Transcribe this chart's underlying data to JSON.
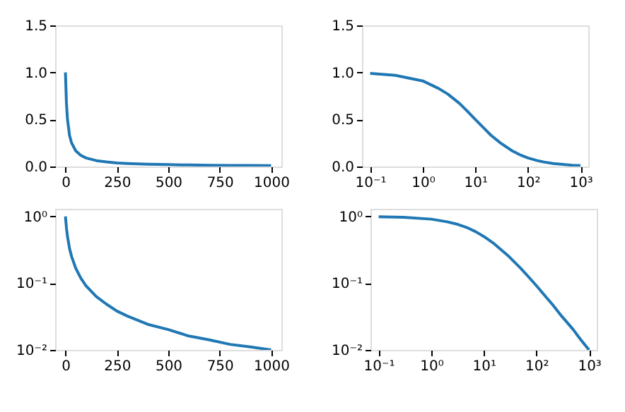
{
  "chart_data": [
    {
      "type": "line",
      "x": [
        0,
        5,
        10,
        20,
        30,
        50,
        75,
        100,
        150,
        200,
        250,
        300,
        400,
        500,
        600,
        700,
        800,
        900,
        1000
      ],
      "series": [
        {
          "color": "#1f77b4",
          "values": [
            1,
            0.67,
            0.5,
            0.33,
            0.25,
            0.167,
            0.118,
            0.091,
            0.0625,
            0.048,
            0.038,
            0.032,
            0.024,
            0.02,
            0.016,
            0.014,
            0.012,
            0.011,
            0.0099
          ]
        }
      ],
      "xlim": [
        -50,
        1050
      ],
      "xticks": [
        0,
        250,
        500,
        750,
        1000
      ],
      "ylim": [
        0,
        1.5
      ],
      "yticks": [
        {
          "value": 0,
          "label": "0.0"
        },
        {
          "value": 0.5,
          "label": "0.5"
        },
        {
          "value": 1,
          "label": "1.0"
        },
        {
          "value": 1.5,
          "label": "1.5"
        }
      ],
      "grid": false,
      "line_style": "solid"
    },
    {
      "type": "line",
      "x": [
        0.1,
        0.3,
        1,
        2,
        3,
        5,
        7,
        10,
        15,
        20,
        30,
        50,
        70,
        100,
        150,
        200,
        300,
        500,
        700,
        1000
      ],
      "series": [
        {
          "color": "#1f77b4",
          "values": [
            0.99,
            0.97,
            0.91,
            0.83,
            0.77,
            0.67,
            0.59,
            0.5,
            0.4,
            0.33,
            0.25,
            0.167,
            0.125,
            0.091,
            0.0625,
            0.048,
            0.032,
            0.02,
            0.014,
            0.0099
          ]
        }
      ],
      "log": "x",
      "xlim": [
        0.07,
        1400
      ],
      "xticks": [
        {
          "value": 0.1,
          "label": "10⁻¹"
        },
        {
          "value": 1,
          "label": "10⁰"
        },
        {
          "value": 10,
          "label": "10¹"
        },
        {
          "value": 100,
          "label": "10²"
        },
        {
          "value": 1000,
          "label": "10³"
        }
      ],
      "ylim": [
        0,
        1.5
      ],
      "yticks": [
        {
          "value": 0,
          "label": "0.0"
        },
        {
          "value": 0.5,
          "label": "0.5"
        },
        {
          "value": 1,
          "label": "1.0"
        },
        {
          "value": 1.5,
          "label": "1.5"
        }
      ],
      "grid": false,
      "line_style": "solid"
    },
    {
      "type": "line",
      "x": [
        0,
        5,
        10,
        20,
        30,
        50,
        75,
        100,
        150,
        200,
        250,
        300,
        400,
        500,
        600,
        700,
        800,
        900,
        1000
      ],
      "series": [
        {
          "color": "#1f77b4",
          "values": [
            1,
            0.67,
            0.5,
            0.33,
            0.25,
            0.167,
            0.118,
            0.091,
            0.0625,
            0.048,
            0.038,
            0.032,
            0.024,
            0.02,
            0.016,
            0.014,
            0.012,
            0.011,
            0.0099
          ]
        }
      ],
      "log": "y",
      "xlim": [
        -50,
        1050
      ],
      "xticks": [
        0,
        250,
        500,
        750,
        1000
      ],
      "ylim": [
        0.0099,
        1.3
      ],
      "yticks": [
        {
          "value": 0.01,
          "label": "10⁻²"
        },
        {
          "value": 0.1,
          "label": "10⁻¹"
        },
        {
          "value": 1,
          "label": "10⁰"
        }
      ],
      "grid": false,
      "line_style": "solid"
    },
    {
      "type": "line",
      "x": [
        0.1,
        0.3,
        1,
        2,
        3,
        5,
        7,
        10,
        15,
        20,
        30,
        50,
        70,
        100,
        150,
        200,
        300,
        500,
        700,
        1000
      ],
      "series": [
        {
          "color": "#1f77b4",
          "values": [
            0.99,
            0.97,
            0.91,
            0.83,
            0.77,
            0.67,
            0.59,
            0.5,
            0.4,
            0.33,
            0.25,
            0.167,
            0.125,
            0.091,
            0.0625,
            0.048,
            0.032,
            0.02,
            0.014,
            0.0099
          ]
        }
      ],
      "log": "xy",
      "xlim": [
        0.07,
        1400
      ],
      "xticks": [
        {
          "value": 0.1,
          "label": "10⁻¹"
        },
        {
          "value": 1,
          "label": "10⁰"
        },
        {
          "value": 10,
          "label": "10¹"
        },
        {
          "value": 100,
          "label": "10²"
        },
        {
          "value": 1000,
          "label": "10³"
        }
      ],
      "ylim": [
        0.0099,
        1.3
      ],
      "yticks": [
        {
          "value": 0.01,
          "label": "10⁻²"
        },
        {
          "value": 0.1,
          "label": "10⁻¹"
        },
        {
          "value": 1,
          "label": "10⁰"
        }
      ],
      "grid": false,
      "line_style": "solid"
    }
  ]
}
